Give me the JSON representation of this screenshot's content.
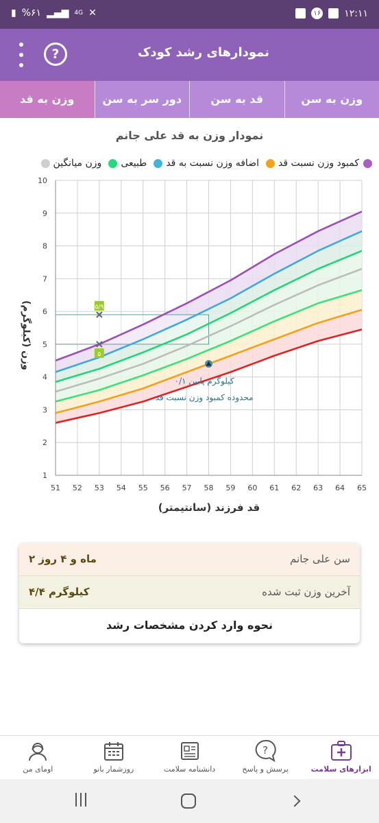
{
  "status_bar": {
    "time": "۱۲:۱۱",
    "notif_count": "۱۶",
    "battery": "%۶۱",
    "network": "4G"
  },
  "app_bar": {
    "title": "نمودارهای رشد کودک",
    "help_symbol": "?"
  },
  "tabs": [
    {
      "label": "وزن به سن",
      "active": false
    },
    {
      "label": "قد به سن",
      "active": false
    },
    {
      "label": "دور سر به سن",
      "active": false
    },
    {
      "label": "وزن به قد",
      "active": true
    }
  ],
  "chart": {
    "title": "نمودار وزن به قد علی جانم",
    "legend": [
      {
        "label": "کمبود وزن نسبت قد",
        "color": "#f4a21b"
      },
      {
        "label": "اضافه وزن نسبت به قد",
        "color": "#45b4d9"
      },
      {
        "label": "طبیعی",
        "color": "#27d97a"
      },
      {
        "label": "وزن میانگین",
        "color": "#cfcfcf"
      }
    ],
    "extra_legend_color": "#a860c0",
    "ylabel": "وزن (کیلوگرم)",
    "xlabel": "قد فرزند (سانتیمتر)",
    "annotation_line1": "۰/۱ کیلوگرم پایین",
    "annotation_line2": "محدوده کمبود وزن نسبت قد",
    "point_labels": [
      "۵/۹",
      "۵"
    ]
  },
  "chart_data": {
    "type": "line",
    "x": [
      51,
      53,
      55,
      57,
      59,
      61,
      63,
      65
    ],
    "xlim": [
      51,
      65
    ],
    "ylim": [
      1,
      10
    ],
    "xticks": [
      51,
      52,
      53,
      54,
      55,
      56,
      57,
      58,
      59,
      60,
      61,
      62,
      63,
      64,
      65
    ],
    "yticks": [
      1,
      2,
      3,
      4,
      5,
      6,
      7,
      8,
      9,
      10
    ],
    "grid": true,
    "series": [
      {
        "color": "#9b4fb5",
        "values": [
          4.5,
          5.0,
          5.6,
          6.25,
          6.95,
          7.75,
          8.45,
          9.05
        ]
      },
      {
        "color": "#3fa9d8",
        "values": [
          4.15,
          4.6,
          5.15,
          5.75,
          6.4,
          7.15,
          7.85,
          8.45
        ]
      },
      {
        "color": "#22d47a",
        "values": [
          3.85,
          4.25,
          4.75,
          5.3,
          5.95,
          6.65,
          7.3,
          7.85
        ]
      },
      {
        "color": "#bcbcbc",
        "values": [
          3.55,
          3.95,
          4.4,
          4.95,
          5.55,
          6.2,
          6.8,
          7.3
        ]
      },
      {
        "color": "#3ee07a",
        "values": [
          3.25,
          3.6,
          4.05,
          4.55,
          5.1,
          5.7,
          6.25,
          6.65
        ]
      },
      {
        "color": "#f0a21e",
        "values": [
          2.9,
          3.25,
          3.65,
          4.15,
          4.65,
          5.15,
          5.65,
          6.05
        ]
      },
      {
        "color": "#e02323",
        "values": [
          2.6,
          2.9,
          3.25,
          3.7,
          4.15,
          4.65,
          5.1,
          5.45
        ]
      }
    ],
    "bands": [
      {
        "from": 0,
        "to": 1,
        "color": "#eadcf2"
      },
      {
        "from": 1,
        "to": 2,
        "color": "#dcefe6"
      },
      {
        "from": 2,
        "to": 4,
        "color": "#e6f6e8"
      },
      {
        "from": 4,
        "to": 5,
        "color": "#fbf0cf"
      },
      {
        "from": 5,
        "to": 6,
        "color": "#fbdada"
      }
    ],
    "points": [
      {
        "x": 53,
        "y": 5.9,
        "marker": "x",
        "label": "۵/۹"
      },
      {
        "x": 53,
        "y": 5.0,
        "marker": "x",
        "label": "۵"
      },
      {
        "x": 58,
        "y": 4.4,
        "marker": "triangle"
      }
    ],
    "highlight_rect": {
      "x0": 51,
      "x1": 58,
      "y0": 5.0,
      "y1": 5.9
    }
  },
  "info_card": {
    "rows": [
      {
        "label": "سن علی جانم",
        "value": "۲ ماه و ۴ روز"
      },
      {
        "label": "آخرین وزن ثبت شده",
        "value": "۴/۴ کیلوگرم"
      }
    ],
    "guide_link": "نحوه وارد کردن مشخصات رشد"
  },
  "bottom_nav": [
    {
      "label": "ابزارهای سلامت",
      "icon": "medical-kit-icon",
      "active": true
    },
    {
      "label": "پرسش و پاسخ",
      "icon": "question-bubble-icon",
      "active": false
    },
    {
      "label": "دانشنامه سلامت",
      "icon": "newspaper-icon",
      "active": false
    },
    {
      "label": "روزشمار بانو",
      "icon": "calendar-icon",
      "active": false
    },
    {
      "label": "اومای من",
      "icon": "profile-icon",
      "active": false
    }
  ]
}
